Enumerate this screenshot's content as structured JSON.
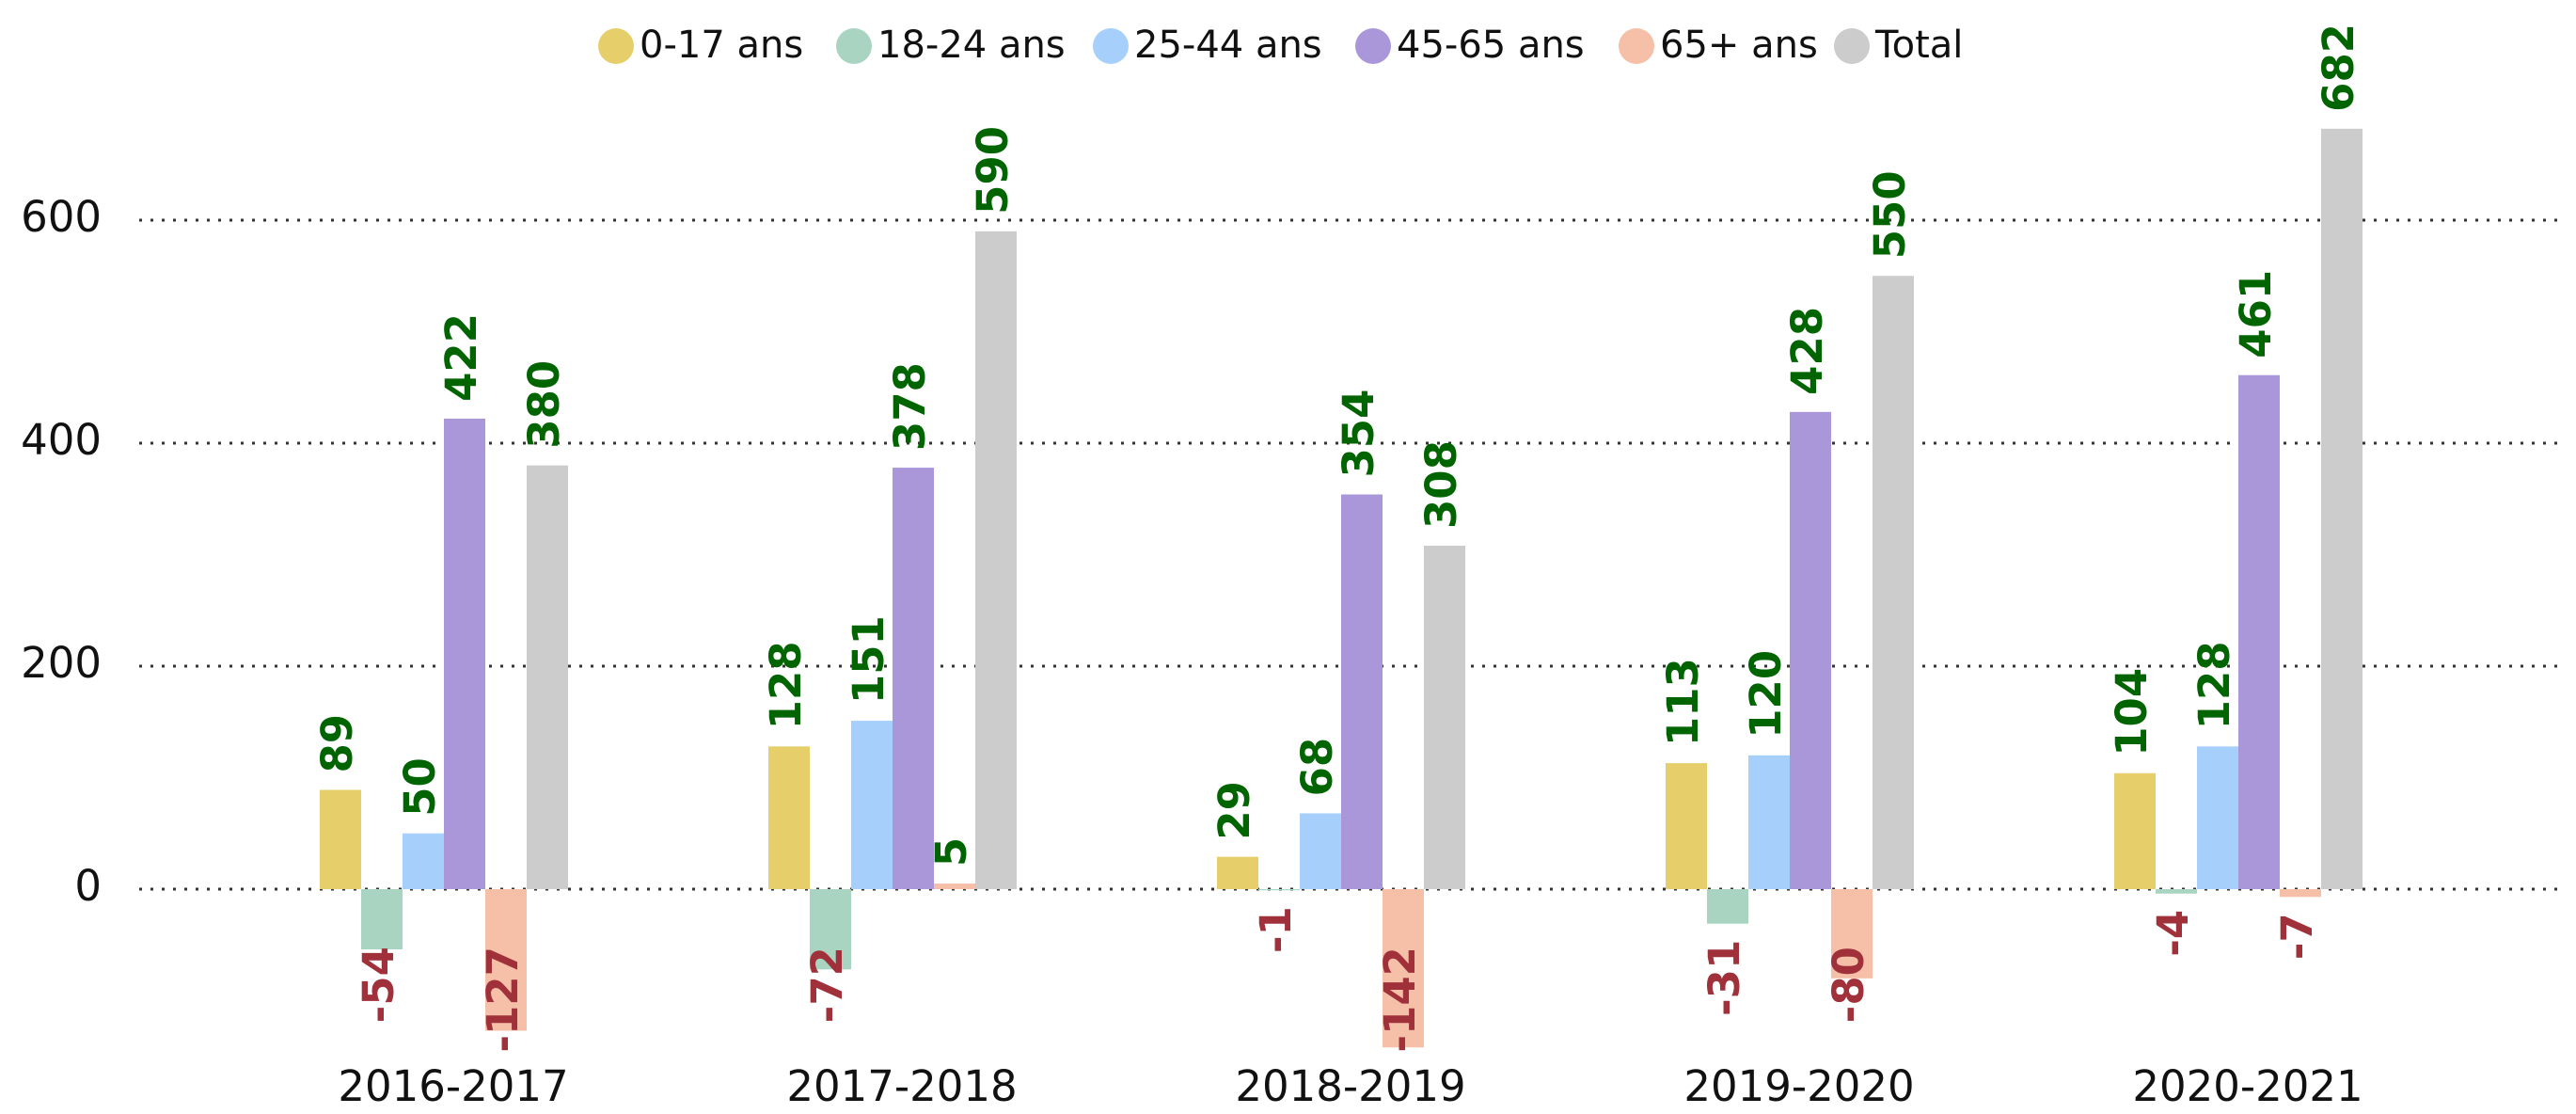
{
  "chart_data": {
    "type": "bar",
    "categories": [
      "2016-2017",
      "2017-2018",
      "2018-2019",
      "2019-2020",
      "2020-2021"
    ],
    "series": [
      {
        "name": "0-17 ans",
        "color": "#e6cf6a",
        "values": [
          89,
          128,
          29,
          113,
          104
        ]
      },
      {
        "name": "18-24 ans",
        "color": "#a9d4c2",
        "values": [
          -54,
          -72,
          -1,
          -31,
          -4
        ]
      },
      {
        "name": "25-44 ans",
        "color": "#a6d0fb",
        "values": [
          50,
          151,
          68,
          120,
          128
        ]
      },
      {
        "name": "45-65 ans",
        "color": "#a997d9",
        "values": [
          422,
          378,
          354,
          428,
          461
        ]
      },
      {
        "name": "65+ ans",
        "color": "#f5bfa8",
        "values": [
          -127,
          5,
          -142,
          -80,
          -7
        ]
      },
      {
        "name": "Total",
        "color": "#cccccc",
        "values": [
          380,
          590,
          308,
          550,
          682
        ]
      }
    ],
    "ylim": [
      -150,
      700
    ],
    "yticks": [
      0,
      200,
      400,
      600
    ],
    "grid": true,
    "legend": "top",
    "label_colors": {
      "positive": "#006400",
      "negative": "#a0303a"
    }
  }
}
